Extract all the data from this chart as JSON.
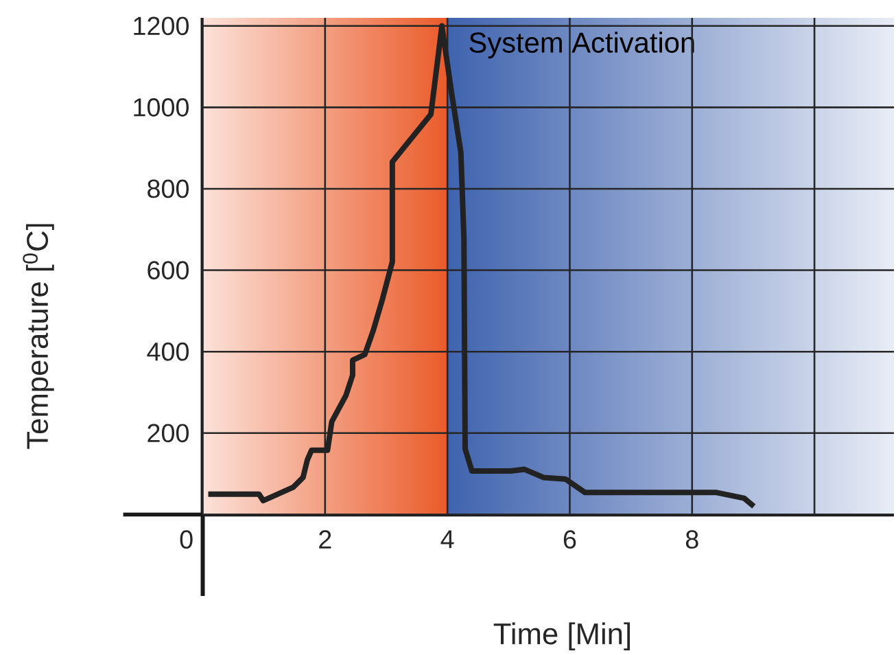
{
  "chart_data": {
    "type": "line",
    "xlabel": "Time [Min]",
    "ylabel": "Temperature [$^{0}$C]",
    "x": [
      0.09,
      0.92,
      0.99,
      1.48,
      1.64,
      1.71,
      1.78,
      2.04,
      2.11,
      2.34,
      2.45,
      2.45,
      2.65,
      2.79,
      2.94,
      3.1,
      3.1,
      3.73,
      3.91,
      4.07,
      4.22,
      4.27,
      4.29,
      4.4,
      5.03,
      5.26,
      5.57,
      5.93,
      6.25,
      8.4,
      8.85,
      9.01
    ],
    "series": [
      {
        "color": "#222222",
        "values": [
          50,
          50,
          34,
          67,
          91,
          134,
          158,
          158,
          228,
          292,
          342,
          379,
          393,
          453,
          530,
          621,
          866,
          983,
          1200,
          1034,
          889,
          678,
          161,
          107,
          107,
          111,
          91,
          87,
          54,
          54,
          40,
          20
        ]
      }
    ],
    "xlim": [
      -1.3,
      11.3
    ],
    "ylim": [
      -200,
      1220
    ],
    "xticks": [
      0,
      2,
      4,
      6,
      8,
      {
        "value": 10,
        "label": null
      }
    ],
    "yticks": [
      {
        "value": 0,
        "label": null
      },
      200,
      400,
      600,
      800,
      1000,
      1200
    ],
    "grid": true,
    "marker": "none",
    "line_style": "solid",
    "bands": [
      {
        "axis": "x",
        "from": 0,
        "to": 4,
        "color": "#ea5b2a"
      },
      {
        "axis": "x",
        "from": 4,
        "to": 11.3,
        "color": "#3f63ae",
        "label": "System Activation"
      }
    ]
  }
}
